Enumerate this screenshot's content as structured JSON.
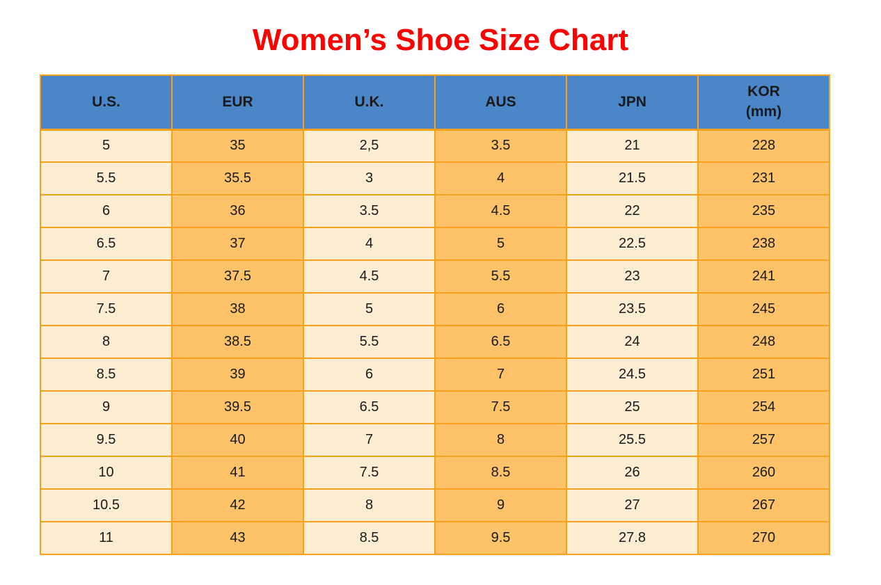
{
  "title": "Women’s Shoe Size Chart",
  "colors": {
    "title_red": "#fe0000",
    "header_blue": "#4a86c8",
    "cell_cream": "#fdeed3",
    "cell_orange": "#fec269",
    "grid_border": "#f9a11b",
    "text": "#1a1a1a",
    "background": "#ffffff"
  },
  "chart_data": {
    "type": "table",
    "title": "Women’s Shoe Size Chart",
    "columns": [
      {
        "line1": "U.S."
      },
      {
        "line1": "EUR"
      },
      {
        "line1": "U.K."
      },
      {
        "line1": "AUS"
      },
      {
        "line1": "JPN"
      },
      {
        "line1": "KOR",
        "line2": "(mm)"
      }
    ],
    "rows": [
      [
        "5",
        "35",
        "2,5",
        "3.5",
        "21",
        "228"
      ],
      [
        "5.5",
        "35.5",
        "3",
        "4",
        "21.5",
        "231"
      ],
      [
        "6",
        "36",
        "3.5",
        "4.5",
        "22",
        "235"
      ],
      [
        "6.5",
        "37",
        "4",
        "5",
        "22.5",
        "238"
      ],
      [
        "7",
        "37.5",
        "4.5",
        "5.5",
        "23",
        "241"
      ],
      [
        "7.5",
        "38",
        "5",
        "6",
        "23.5",
        "245"
      ],
      [
        "8",
        "38.5",
        "5.5",
        "6.5",
        "24",
        "248"
      ],
      [
        "8.5",
        "39",
        "6",
        "7",
        "24.5",
        "251"
      ],
      [
        "9",
        "39.5",
        "6.5",
        "7.5",
        "25",
        "254"
      ],
      [
        "9.5",
        "40",
        "7",
        "8",
        "25.5",
        "257"
      ],
      [
        "10",
        "41",
        "7.5",
        "8.5",
        "26",
        "260"
      ],
      [
        "10.5",
        "42",
        "8",
        "9",
        "27",
        "267"
      ],
      [
        "11",
        "43",
        "8.5",
        "9.5",
        "27.8",
        "270"
      ]
    ]
  }
}
